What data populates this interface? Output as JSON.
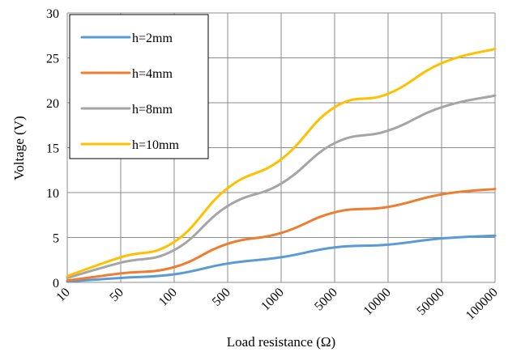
{
  "chart_data": {
    "type": "line",
    "x_categories": [
      "10",
      "50",
      "100",
      "500",
      "1000",
      "5000",
      "10000",
      "50000",
      "100000"
    ],
    "xlabel": "Load resistance (Ω)",
    "ylabel": "Voltage (V)",
    "ylim": [
      0,
      30
    ],
    "yticks": [
      "0",
      "5",
      "10",
      "15",
      "20",
      "25",
      "30"
    ],
    "grid": true,
    "legend_position": "top-left",
    "series": [
      {
        "name": "h=2mm",
        "color": "#5B9BD5",
        "values": [
          0.1,
          0.5,
          0.9,
          2.1,
          2.8,
          3.9,
          4.2,
          4.9,
          5.2
        ]
      },
      {
        "name": "h=4mm",
        "color": "#ED7D31",
        "values": [
          0.2,
          1.0,
          1.7,
          4.3,
          5.5,
          7.8,
          8.4,
          9.8,
          10.4
        ]
      },
      {
        "name": "h=8mm",
        "color": "#A5A5A5",
        "values": [
          0.5,
          2.2,
          3.6,
          8.5,
          11.0,
          15.5,
          16.9,
          19.5,
          20.8
        ]
      },
      {
        "name": "h=10mm",
        "color": "#FFC000",
        "values": [
          0.7,
          2.8,
          4.5,
          10.5,
          13.7,
          19.5,
          21.0,
          24.4,
          26.0
        ]
      }
    ]
  }
}
